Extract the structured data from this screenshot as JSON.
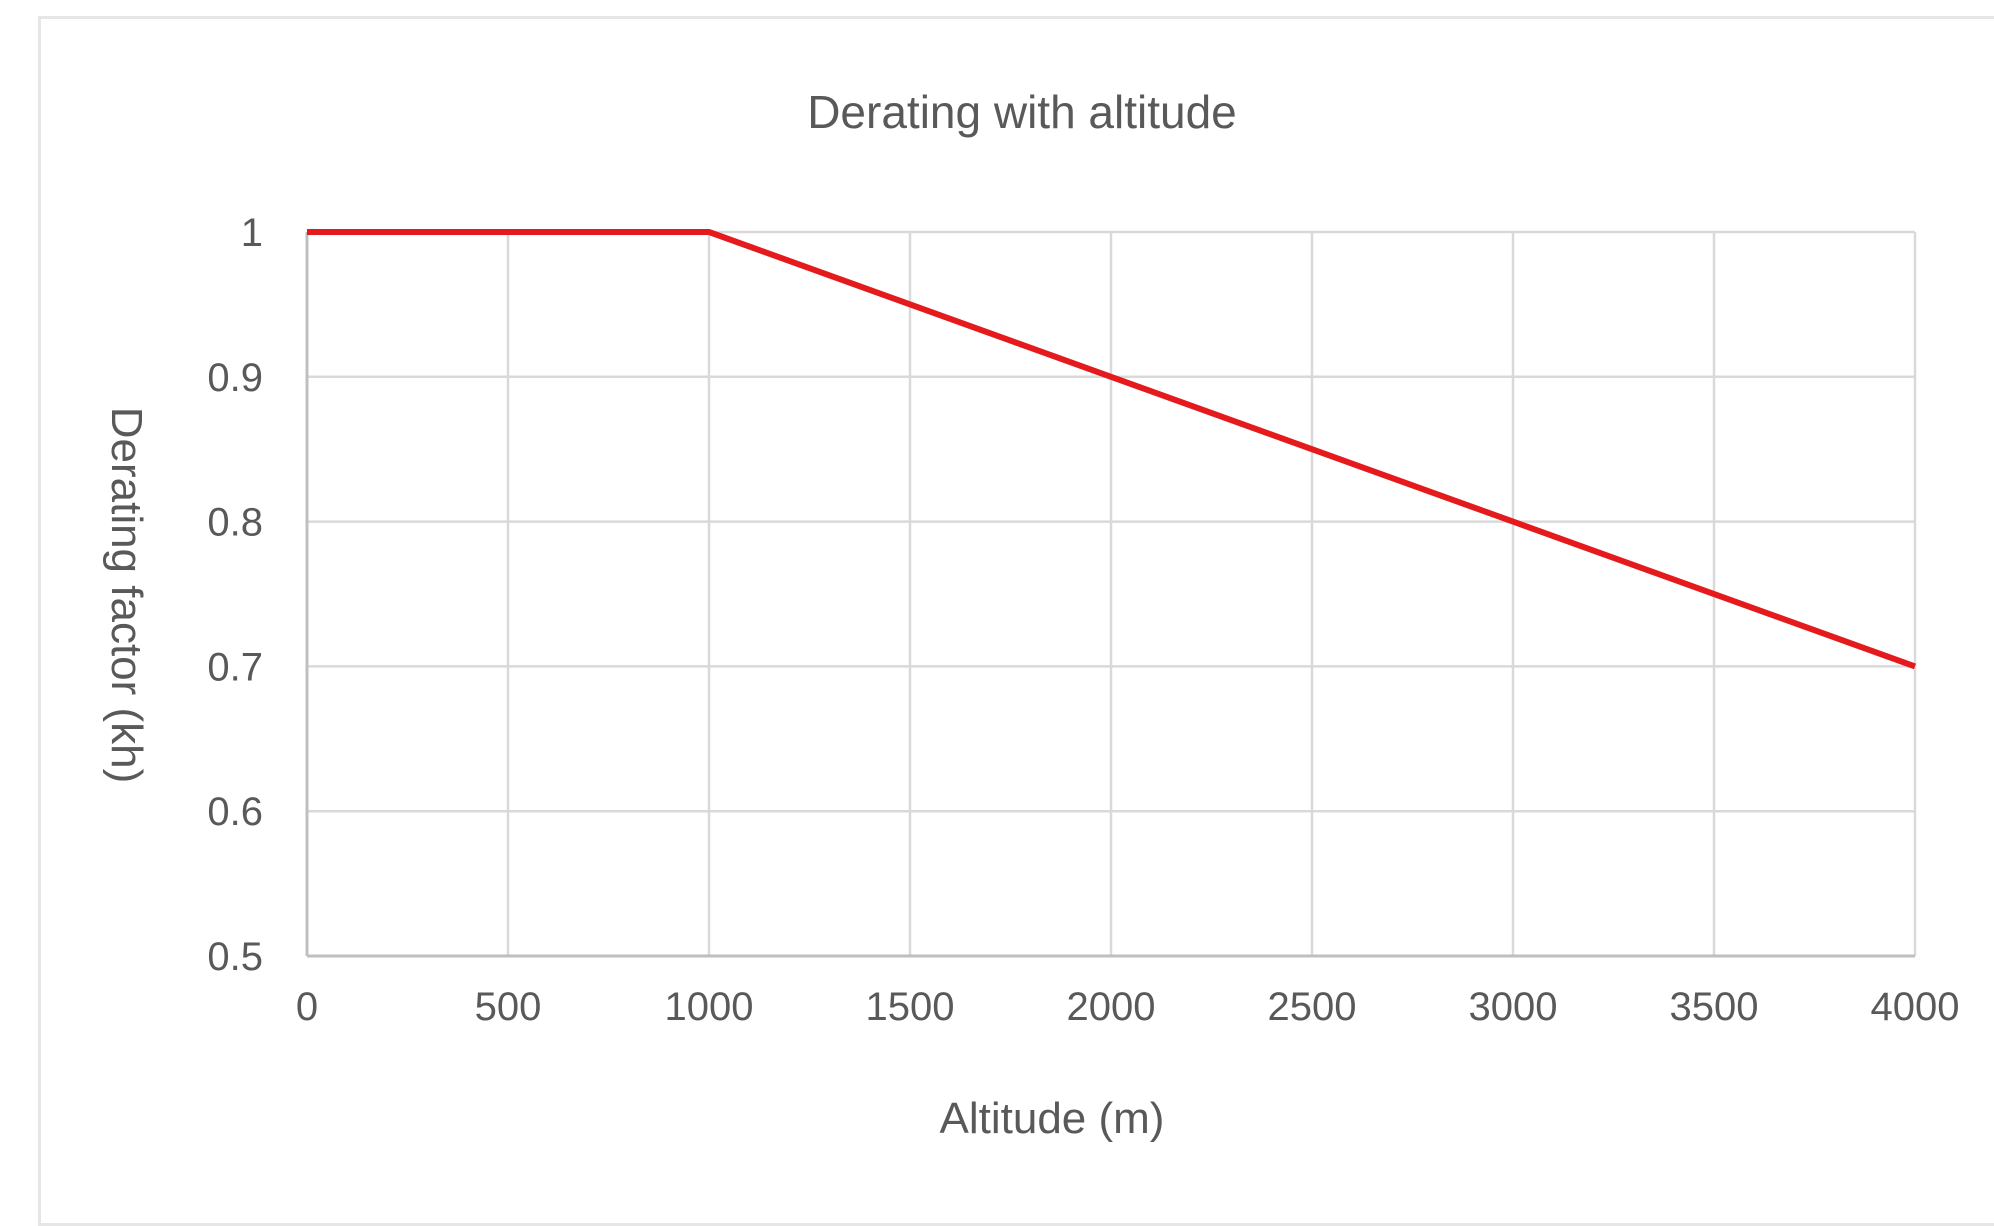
{
  "chart_data": {
    "type": "line",
    "title": "Derating with altitude",
    "xlabel": "Altitude (m)",
    "ylabel": "Derating factor (kh)",
    "x": [
      0,
      1000,
      2000,
      3000,
      4000
    ],
    "series": [
      {
        "name": "",
        "values": [
          1,
          1,
          0.9,
          0.8,
          0.7
        ],
        "color": "#e41a1c"
      }
    ],
    "xlim": [
      0,
      4000
    ],
    "ylim": [
      0.5,
      1
    ],
    "xticks": [
      0,
      500,
      1000,
      1500,
      2000,
      2500,
      3000,
      3500,
      4000
    ],
    "yticks": [
      0.5,
      0.6,
      0.7,
      0.8,
      0.9,
      1
    ],
    "xtick_labels": [
      "0",
      "500",
      "1000",
      "1500",
      "2000",
      "2500",
      "3000",
      "3500",
      "4000"
    ],
    "ytick_labels": [
      "0.5",
      "0.6",
      "0.7",
      "0.8",
      "0.9",
      "1"
    ],
    "grid": true,
    "legend": "none"
  }
}
